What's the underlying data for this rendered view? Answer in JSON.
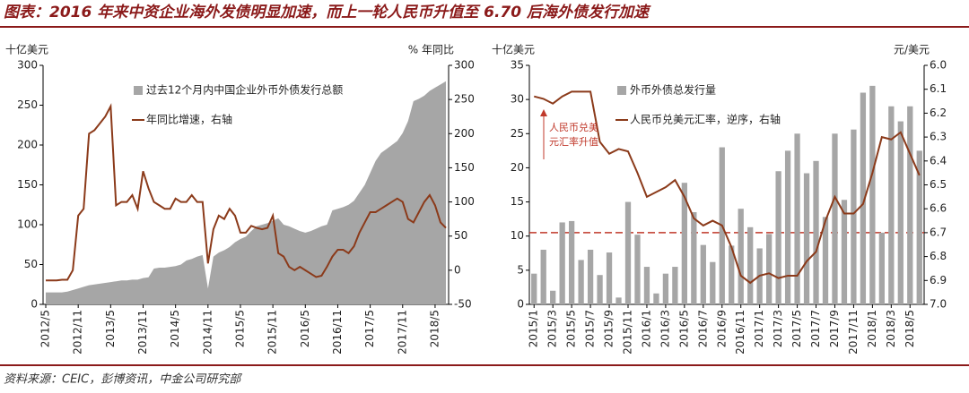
{
  "title": "图表：2016 年来中资企业海外发债明显加速，而上一轮人民币升值至 6.70 后海外债发行加速",
  "source": "资料来源：CEIC，彭博资讯，中金公司研究部",
  "chart_data": [
    {
      "type": "combo",
      "y_label": "十亿美元",
      "y2_label": "% 年同比",
      "categories": [
        "2012/5",
        null,
        null,
        null,
        null,
        null,
        "2012/11",
        null,
        null,
        null,
        null,
        null,
        "2013/5",
        null,
        null,
        null,
        null,
        null,
        "2013/11",
        null,
        null,
        null,
        null,
        null,
        "2014/5",
        null,
        null,
        null,
        null,
        null,
        "2014/11",
        null,
        null,
        null,
        null,
        null,
        "2015/5",
        null,
        null,
        null,
        null,
        null,
        "2015/11",
        null,
        null,
        null,
        null,
        null,
        "2016/5",
        null,
        null,
        null,
        null,
        null,
        "2016/11",
        null,
        null,
        null,
        null,
        null,
        "2017/5",
        null,
        null,
        null,
        null,
        null,
        "2017/11",
        null,
        null,
        null,
        null,
        null,
        "2018/5",
        null,
        null
      ],
      "ylim": [
        0,
        300
      ],
      "yticks": [
        0,
        50,
        100,
        150,
        200,
        250,
        300
      ],
      "y2lim": [
        -50,
        300
      ],
      "y2ticks": [
        -50,
        0,
        50,
        100,
        150,
        200,
        250,
        300
      ],
      "series": [
        {
          "name": "过去12个月内中国企业外币外债发行总额",
          "type": "area",
          "color": "#a6a6a6",
          "values": [
            15,
            15,
            15,
            15,
            16,
            18,
            20,
            22,
            24,
            25,
            26,
            27,
            28,
            29,
            30,
            30,
            31,
            31,
            33,
            34,
            45,
            46,
            46,
            47,
            48,
            50,
            55,
            57,
            60,
            62,
            20,
            60,
            65,
            68,
            72,
            78,
            82,
            85,
            92,
            98,
            100,
            102,
            105,
            108,
            100,
            98,
            95,
            92,
            90,
            92,
            95,
            98,
            100,
            118,
            120,
            122,
            125,
            130,
            140,
            150,
            165,
            180,
            190,
            195,
            200,
            205,
            215,
            230,
            255,
            258,
            262,
            268,
            272,
            276,
            280
          ]
        },
        {
          "name": "年同比增速，右轴",
          "type": "line",
          "axis": "y2",
          "color": "#8b3a1a",
          "values": [
            -15,
            -15,
            -15,
            -14,
            -14,
            0,
            80,
            90,
            200,
            205,
            215,
            225,
            240,
            95,
            100,
            100,
            110,
            90,
            145,
            120,
            100,
            95,
            90,
            90,
            105,
            100,
            100,
            110,
            100,
            100,
            10,
            60,
            80,
            75,
            90,
            80,
            55,
            55,
            65,
            62,
            60,
            62,
            80,
            25,
            20,
            5,
            0,
            5,
            0,
            -5,
            -10,
            -8,
            5,
            20,
            30,
            30,
            25,
            35,
            55,
            70,
            85,
            85,
            90,
            95,
            100,
            105,
            100,
            75,
            70,
            85,
            100,
            110,
            95,
            70,
            62
          ]
        }
      ]
    },
    {
      "type": "combo",
      "y_label": "十亿美元",
      "y2_label": "元/美元",
      "categories": [
        "2015/1",
        null,
        "2015/3",
        null,
        "2015/5",
        null,
        "2015/7",
        null,
        "2015/9",
        null,
        "2015/11",
        null,
        "2016/1",
        null,
        "2016/3",
        null,
        "2016/5",
        null,
        "2016/7",
        null,
        "2016/9",
        null,
        "2016/11",
        null,
        "2017/1",
        null,
        "2017/3",
        null,
        "2017/5",
        null,
        "2017/7",
        null,
        "2017/9",
        null,
        "2017/11",
        null,
        "2018/1",
        null,
        "2018/3",
        null,
        "2018/5",
        null
      ],
      "ylim": [
        0,
        35
      ],
      "yticks": [
        0,
        5,
        10,
        15,
        20,
        25,
        30,
        35
      ],
      "y2lim": [
        6,
        7
      ],
      "y2_inverted": true,
      "y2ticks": [
        {
          "value": 6,
          "label": "6.0"
        },
        6.1,
        6.2,
        6.3,
        6.4,
        6.5,
        6.6,
        6.7,
        6.8,
        6.9,
        {
          "value": 7,
          "label": "7.0"
        }
      ],
      "ref_line": {
        "value": 6.7,
        "axis": "y2",
        "color": "#c0392b",
        "style": "dashed"
      },
      "annotation": [
        "人民币兑美",
        "元汇率升值"
      ],
      "series": [
        {
          "name": "外币外债总发行量",
          "type": "bar",
          "color": "#a6a6a6",
          "values": [
            4.5,
            8,
            2,
            12,
            12.2,
            6.5,
            8,
            4.3,
            7.6,
            1,
            15,
            10.2,
            5.5,
            1.6,
            4.5,
            5.5,
            17.8,
            13.5,
            8.7,
            6.2,
            23,
            8.6,
            14,
            11.3,
            8.2,
            10.3,
            19.5,
            22.5,
            25,
            19.2,
            21,
            12.8,
            25,
            15.3,
            25.6,
            31,
            32,
            10.5,
            29,
            26.8,
            29,
            22.5
          ]
        },
        {
          "name": "人民币兑美元汇率，逆序，右轴",
          "type": "line",
          "axis": "y2",
          "color": "#8b3a1a",
          "values": [
            6.13,
            6.14,
            6.16,
            6.13,
            6.11,
            6.11,
            6.11,
            6.32,
            6.37,
            6.35,
            6.36,
            6.45,
            6.55,
            6.53,
            6.51,
            6.48,
            6.55,
            6.64,
            6.67,
            6.65,
            6.67,
            6.76,
            6.88,
            6.91,
            6.88,
            6.87,
            6.89,
            6.88,
            6.88,
            6.82,
            6.78,
            6.65,
            6.55,
            6.62,
            6.62,
            6.58,
            6.45,
            6.3,
            6.31,
            6.28,
            6.37,
            6.46
          ]
        }
      ]
    }
  ]
}
